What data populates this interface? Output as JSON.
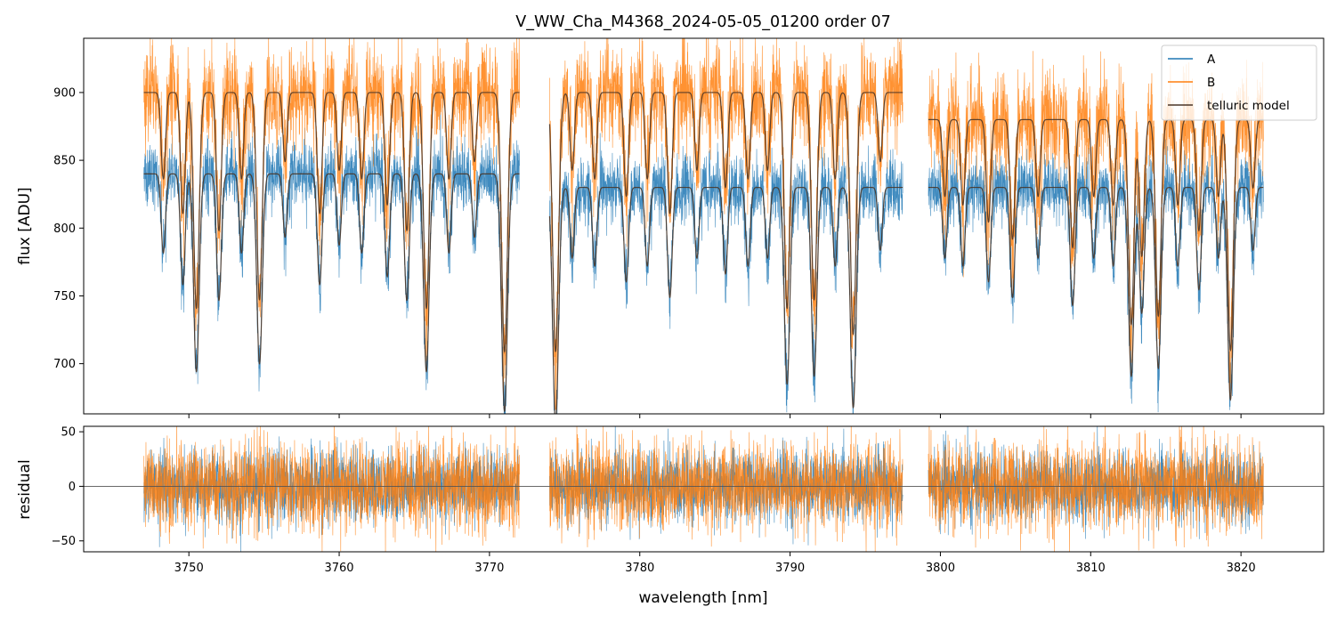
{
  "chart_data": [
    {
      "panel": "top",
      "type": "line",
      "title": "V_WW_Cha_M4368_2024-05-05_01200  order 07",
      "xlabel": "",
      "ylabel": "flux [ADU]",
      "xlim": [
        3743,
        3825.5
      ],
      "ylim": [
        663,
        940
      ],
      "yticks": [
        700,
        750,
        800,
        850,
        900
      ],
      "ytick_labels": [
        "700",
        "750",
        "800",
        "850",
        "900"
      ],
      "xticks": [
        3750,
        3760,
        3770,
        3780,
        3790,
        3800,
        3810,
        3820
      ],
      "legend": {
        "position": "top-right",
        "entries": [
          "A",
          "B",
          "telluric model"
        ]
      },
      "segments": [
        {
          "x_range": [
            3747.0,
            3772.0
          ],
          "baseline_A": 840,
          "baseline_B": 900
        },
        {
          "x_range": [
            3774.0,
            3797.5
          ],
          "baseline_A": 830,
          "baseline_B": 900
        },
        {
          "x_range": [
            3799.2,
            3821.5
          ],
          "baseline_A": 830,
          "baseline_B": 880
        }
      ],
      "absorption_lines": [
        {
          "x": 3748.3,
          "depth": 0.1
        },
        {
          "x": 3749.6,
          "depth": 0.14
        },
        {
          "x": 3750.5,
          "depth": 0.25
        },
        {
          "x": 3752.0,
          "depth": 0.16
        },
        {
          "x": 3753.5,
          "depth": 0.1
        },
        {
          "x": 3754.7,
          "depth": 0.24
        },
        {
          "x": 3756.4,
          "depth": 0.08
        },
        {
          "x": 3758.7,
          "depth": 0.14
        },
        {
          "x": 3760.0,
          "depth": 0.09
        },
        {
          "x": 3761.5,
          "depth": 0.1
        },
        {
          "x": 3763.2,
          "depth": 0.13
        },
        {
          "x": 3764.5,
          "depth": 0.16
        },
        {
          "x": 3765.8,
          "depth": 0.25
        },
        {
          "x": 3767.3,
          "depth": 0.1
        },
        {
          "x": 3769.0,
          "depth": 0.08
        },
        {
          "x": 3771.0,
          "depth": 0.3
        },
        {
          "x": 3774.4,
          "depth": 0.3
        },
        {
          "x": 3775.5,
          "depth": 0.09
        },
        {
          "x": 3777.0,
          "depth": 0.1
        },
        {
          "x": 3779.1,
          "depth": 0.12
        },
        {
          "x": 3780.5,
          "depth": 0.1
        },
        {
          "x": 3782.0,
          "depth": 0.14
        },
        {
          "x": 3783.8,
          "depth": 0.09
        },
        {
          "x": 3785.7,
          "depth": 0.11
        },
        {
          "x": 3787.2,
          "depth": 0.1
        },
        {
          "x": 3788.5,
          "depth": 0.09
        },
        {
          "x": 3789.8,
          "depth": 0.25
        },
        {
          "x": 3791.6,
          "depth": 0.24
        },
        {
          "x": 3793.0,
          "depth": 0.1
        },
        {
          "x": 3794.2,
          "depth": 0.28
        },
        {
          "x": 3796.0,
          "depth": 0.08
        },
        {
          "x": 3800.3,
          "depth": 0.09
        },
        {
          "x": 3801.5,
          "depth": 0.1
        },
        {
          "x": 3803.2,
          "depth": 0.12
        },
        {
          "x": 3804.8,
          "depth": 0.14
        },
        {
          "x": 3806.5,
          "depth": 0.09
        },
        {
          "x": 3808.8,
          "depth": 0.15
        },
        {
          "x": 3810.2,
          "depth": 0.09
        },
        {
          "x": 3811.5,
          "depth": 0.1
        },
        {
          "x": 3812.7,
          "depth": 0.24
        },
        {
          "x": 3813.4,
          "depth": 0.16
        },
        {
          "x": 3814.5,
          "depth": 0.23
        },
        {
          "x": 3815.8,
          "depth": 0.1
        },
        {
          "x": 3817.2,
          "depth": 0.13
        },
        {
          "x": 3818.5,
          "depth": 0.09
        },
        {
          "x": 3819.3,
          "depth": 0.27
        },
        {
          "x": 3820.8,
          "depth": 0.08
        }
      ],
      "series": [
        {
          "name": "A",
          "color": "#1f77b4",
          "noise_sigma": 12
        },
        {
          "name": "B",
          "color": "#ff7f0e",
          "noise_sigma": 18
        },
        {
          "name": "telluric model",
          "color": "#4a3628"
        }
      ]
    },
    {
      "panel": "bottom",
      "type": "line",
      "xlabel": "wavelength [nm]",
      "ylabel": "residual",
      "xlim": [
        3743,
        3825.5
      ],
      "ylim": [
        -60,
        55
      ],
      "yticks": [
        -50,
        0,
        50
      ],
      "ytick_labels": [
        "−50",
        "0",
        "50"
      ],
      "xticks": [
        3750,
        3760,
        3770,
        3780,
        3790,
        3800,
        3810,
        3820
      ],
      "xtick_labels": [
        "3750",
        "3760",
        "3770",
        "3780",
        "3790",
        "3800",
        "3810",
        "3820"
      ],
      "zero_line": 0,
      "series": [
        {
          "name": "A",
          "color": "#1f77b4",
          "noise_sigma": 16
        },
        {
          "name": "B",
          "color": "#ff7f0e",
          "noise_sigma": 20
        }
      ]
    }
  ]
}
